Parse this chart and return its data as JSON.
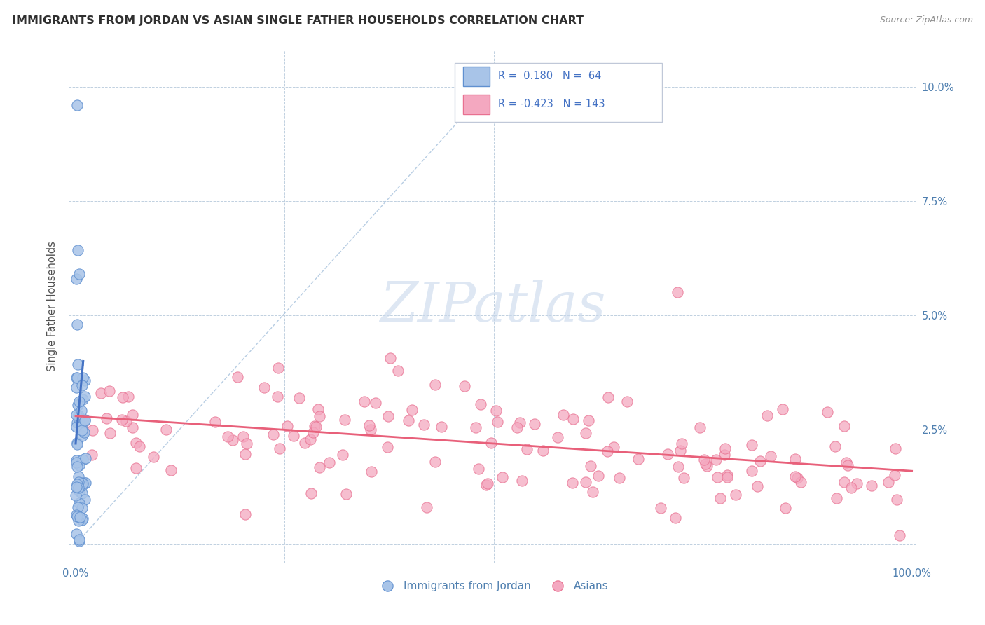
{
  "title": "IMMIGRANTS FROM JORDAN VS ASIAN SINGLE FATHER HOUSEHOLDS CORRELATION CHART",
  "source": "Source: ZipAtlas.com",
  "ylabel": "Single Father Households",
  "blue_color": "#a8c4e8",
  "blue_edge_color": "#6090d0",
  "pink_color": "#f4a8c0",
  "pink_edge_color": "#e87090",
  "blue_line_color": "#4472c4",
  "pink_line_color": "#e8607a",
  "diag_line_color": "#b0c8e0",
  "title_color": "#303030",
  "axis_tick_color": "#5080b0",
  "ylabel_color": "#505050",
  "watermark_color": "#c8d8ec",
  "legend_text_color": "#4472c4",
  "legend_border_color": "#c0c8d8",
  "source_color": "#909090"
}
